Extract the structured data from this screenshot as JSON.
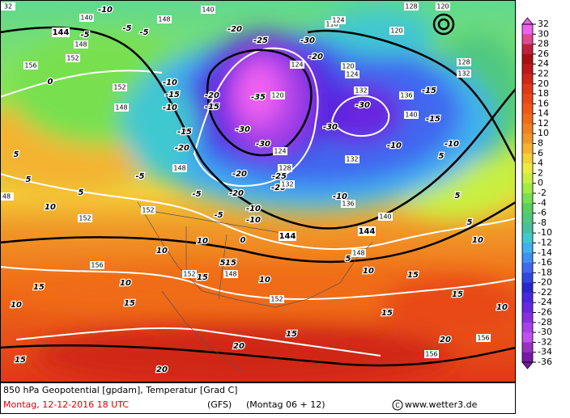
{
  "map": {
    "footer": {
      "title": "850 hPa Geopotential [gpdam], Temperatur [Grad C]",
      "date": "Montag, 12-12-2016  18 UTC",
      "model": "(GFS)",
      "run": "(Montag 06 + 12)",
      "site": "www.wetter3.de"
    },
    "colorbar": {
      "ticks": [
        32,
        30,
        28,
        26,
        24,
        22,
        20,
        18,
        16,
        14,
        12,
        10,
        8,
        6,
        4,
        2,
        0,
        -2,
        -4,
        -6,
        -8,
        -10,
        -12,
        -14,
        -16,
        -18,
        -20,
        -22,
        -24,
        -26,
        -28,
        -30,
        -32,
        -34,
        -36
      ],
      "band_colors": [
        "#f060f0",
        "#e04890",
        "#c02040",
        "#a81010",
        "#c01818",
        "#d02818",
        "#e03818",
        "#e84818",
        "#f05818",
        "#f06c18",
        "#f08020",
        "#f09828",
        "#f4b430",
        "#f4d038",
        "#ecec40",
        "#c8f040",
        "#a0ec40",
        "#78e050",
        "#58d060",
        "#50c880",
        "#48c0a0",
        "#40c8d0",
        "#40b0f0",
        "#4090f0",
        "#4068f0",
        "#3048e0",
        "#2828d0",
        "#4828e0",
        "#6828e0",
        "#8830e0",
        "#a840e8",
        "#c050f0",
        "#9830c0",
        "#7818a8"
      ]
    },
    "contour_labels": {
      "temperature": [
        "-25",
        "-35",
        "-30",
        "-30",
        "-30",
        "-20",
        "-30",
        "-30",
        "-15",
        "-15",
        "-10",
        "-10",
        "-10",
        "-20",
        "-25",
        "-20",
        "-20",
        "-5",
        "-10",
        "-10",
        "-5",
        "10",
        "0",
        "-10",
        "-15",
        "-10",
        "-15",
        "-20",
        "-20",
        "-15",
        "-20",
        "-5",
        "-10",
        "-5",
        "-5",
        "-5",
        "0",
        "5",
        "10",
        "5",
        "5",
        "10",
        "10",
        "10",
        "15",
        "15",
        "15",
        "20",
        "20",
        "15",
        "10",
        "10",
        "15",
        "15",
        "15",
        "10",
        "10",
        "5",
        "5",
        "5",
        "5",
        "5",
        "15",
        "15",
        "20"
      ],
      "geopotential": [
        "140",
        "148",
        "148",
        "152",
        "156",
        "152",
        "148",
        "124",
        "120",
        "124",
        "128",
        "132",
        "132",
        "136",
        "140",
        "152",
        "152",
        "156",
        "152",
        "148",
        "152",
        "156",
        "156",
        "140",
        "136",
        "132",
        "128",
        "132",
        "120",
        "124",
        "116",
        "124",
        "120",
        "128",
        "120",
        "140",
        "148",
        "48",
        "32",
        "148"
      ],
      "geopotential_bold": [
        "144",
        "144",
        "144"
      ]
    }
  }
}
